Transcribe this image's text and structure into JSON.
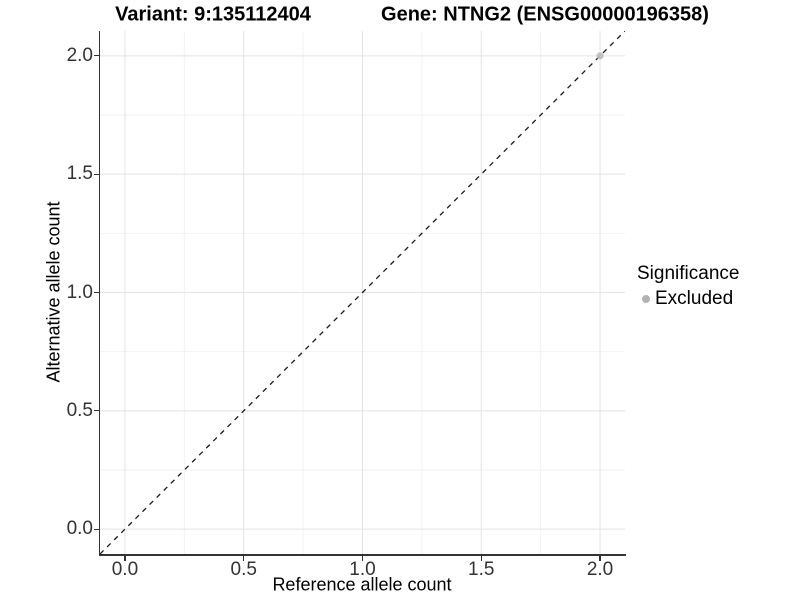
{
  "chart_data": {
    "type": "scatter",
    "title_left": "Variant: 9:135112404",
    "title_right": "Gene: NTNG2 (ENSG00000196358)",
    "xlabel": "Reference allele count",
    "ylabel": "Alternative allele count",
    "xlim": [
      -0.105,
      2.105
    ],
    "ylim": [
      -0.105,
      2.105
    ],
    "xticks": [
      0.0,
      0.5,
      1.0,
      1.5,
      2.0
    ],
    "yticks": [
      0.0,
      0.5,
      1.0,
      1.5,
      2.0
    ],
    "minor_ticks": [
      0.25,
      0.75,
      1.25,
      1.75
    ],
    "tick_decimals": 1,
    "grid": "major and minor, light gray on white",
    "series": [
      {
        "name": "Excluded",
        "color": "#bdbdbd",
        "points": [
          {
            "x": 2.0,
            "y": 2.0
          }
        ]
      }
    ],
    "reference_line": {
      "slope": 1,
      "intercept": 0,
      "style": "dashed",
      "color": "#1a1a1a"
    },
    "legend": {
      "title": "Significance",
      "position": "right",
      "items": [
        {
          "label": "Excluded",
          "color": "#b3b3b3"
        }
      ]
    },
    "colors": {
      "background": "#ffffff",
      "grid_major": "#e3e3e3",
      "grid_minor": "#f2f2f2",
      "axis_line": "#333333",
      "tick_label": "#333333",
      "text": "#000000"
    }
  }
}
